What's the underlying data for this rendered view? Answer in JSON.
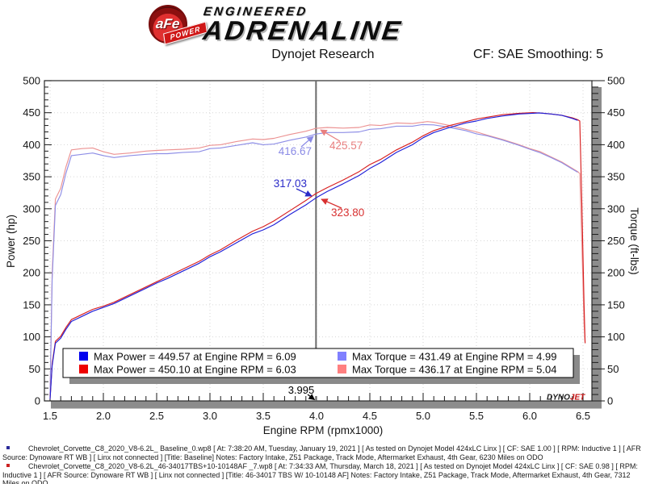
{
  "header": {
    "brand": {
      "afe": "aFe",
      "power": "POWER",
      "engineered": "ENGINEERED",
      "adrenaline": "ADRENALINE"
    },
    "title": "Dynojet Research",
    "cf": "CF: SAE Smoothing: 5"
  },
  "chart_data": {
    "type": "line",
    "title": "Dynojet Research",
    "x_axis": {
      "label": "Engine RPM (rpmx1000)",
      "min": 1.5,
      "max": 6.5,
      "major": 0.5,
      "minor": 0.1
    },
    "y_left": {
      "label": "Power (hp)",
      "min": 0,
      "max": 500,
      "major": 50,
      "minor": 10
    },
    "y_right": {
      "label": "Torque (ft-lbs)",
      "min": 0,
      "max": 500,
      "major": 50,
      "minor": 10
    },
    "grid": true,
    "cursor": {
      "rpm": 3.995,
      "label": "3.995"
    },
    "series": [
      {
        "name": "torque_new",
        "color": "#ec9292",
        "points": [
          [
            1.5,
            10
          ],
          [
            1.52,
            200
          ],
          [
            1.55,
            315
          ],
          [
            1.6,
            332
          ],
          [
            1.65,
            366
          ],
          [
            1.7,
            392
          ],
          [
            1.8,
            394
          ],
          [
            1.9,
            395
          ],
          [
            2.0,
            389
          ],
          [
            2.1,
            385
          ],
          [
            2.25,
            387
          ],
          [
            2.4,
            390
          ],
          [
            2.5,
            391
          ],
          [
            2.6,
            392
          ],
          [
            2.75,
            393
          ],
          [
            2.9,
            395
          ],
          [
            3.0,
            399
          ],
          [
            3.1,
            400
          ],
          [
            3.25,
            405
          ],
          [
            3.4,
            409
          ],
          [
            3.5,
            408
          ],
          [
            3.6,
            410
          ],
          [
            3.75,
            416
          ],
          [
            3.9,
            421
          ],
          [
            3.995,
            425.57
          ],
          [
            4.1,
            427
          ],
          [
            4.25,
            426
          ],
          [
            4.4,
            427
          ],
          [
            4.5,
            431
          ],
          [
            4.6,
            430
          ],
          [
            4.75,
            434
          ],
          [
            4.9,
            433
          ],
          [
            5.04,
            436.17
          ],
          [
            5.1,
            435
          ],
          [
            5.25,
            430
          ],
          [
            5.4,
            424
          ],
          [
            5.5,
            420
          ],
          [
            5.6,
            415
          ],
          [
            5.75,
            408
          ],
          [
            5.9,
            400
          ],
          [
            6.0,
            394
          ],
          [
            6.1,
            389
          ],
          [
            6.2,
            381
          ],
          [
            6.3,
            373
          ],
          [
            6.4,
            363
          ],
          [
            6.45,
            358
          ],
          [
            6.47,
            355
          ],
          [
            6.49,
            240
          ],
          [
            6.51,
            120
          ],
          [
            6.52,
            90
          ]
        ]
      },
      {
        "name": "torque_baseline",
        "color": "#8e8ee6",
        "points": [
          [
            1.5,
            10
          ],
          [
            1.52,
            190
          ],
          [
            1.55,
            305
          ],
          [
            1.6,
            322
          ],
          [
            1.65,
            356
          ],
          [
            1.7,
            383
          ],
          [
            1.8,
            385
          ],
          [
            1.9,
            387
          ],
          [
            2.0,
            383
          ],
          [
            2.1,
            380
          ],
          [
            2.25,
            383
          ],
          [
            2.4,
            385
          ],
          [
            2.5,
            386
          ],
          [
            2.6,
            386
          ],
          [
            2.75,
            388
          ],
          [
            2.9,
            389
          ],
          [
            3.0,
            394
          ],
          [
            3.1,
            395
          ],
          [
            3.25,
            399
          ],
          [
            3.4,
            403
          ],
          [
            3.5,
            400
          ],
          [
            3.6,
            401
          ],
          [
            3.75,
            407
          ],
          [
            3.9,
            412
          ],
          [
            3.995,
            416.67
          ],
          [
            4.1,
            419
          ],
          [
            4.25,
            419
          ],
          [
            4.4,
            420
          ],
          [
            4.5,
            424
          ],
          [
            4.6,
            425
          ],
          [
            4.75,
            429
          ],
          [
            4.9,
            429
          ],
          [
            4.99,
            431.49
          ],
          [
            5.1,
            431
          ],
          [
            5.25,
            427
          ],
          [
            5.4,
            422
          ],
          [
            5.5,
            417
          ],
          [
            5.6,
            414
          ],
          [
            5.75,
            407
          ],
          [
            5.9,
            399
          ],
          [
            6.0,
            393
          ],
          [
            6.09,
            388
          ],
          [
            6.2,
            380
          ],
          [
            6.3,
            372
          ],
          [
            6.4,
            362
          ],
          [
            6.45,
            357
          ]
        ]
      },
      {
        "name": "power_new",
        "color": "#d82020",
        "points": [
          [
            1.5,
            3
          ],
          [
            1.52,
            58
          ],
          [
            1.55,
            93
          ],
          [
            1.6,
            101
          ],
          [
            1.65,
            115
          ],
          [
            1.7,
            127
          ],
          [
            1.8,
            135
          ],
          [
            1.9,
            143
          ],
          [
            2.0,
            148
          ],
          [
            2.1,
            154
          ],
          [
            2.25,
            166
          ],
          [
            2.4,
            178
          ],
          [
            2.5,
            186
          ],
          [
            2.6,
            194
          ],
          [
            2.75,
            206
          ],
          [
            2.9,
            218
          ],
          [
            3.0,
            228
          ],
          [
            3.1,
            236
          ],
          [
            3.25,
            251
          ],
          [
            3.4,
            265
          ],
          [
            3.5,
            272
          ],
          [
            3.6,
            281
          ],
          [
            3.75,
            297
          ],
          [
            3.9,
            313
          ],
          [
            3.995,
            323.8
          ],
          [
            4.1,
            333
          ],
          [
            4.25,
            345
          ],
          [
            4.4,
            358
          ],
          [
            4.5,
            369
          ],
          [
            4.6,
            377
          ],
          [
            4.75,
            392
          ],
          [
            4.9,
            404
          ],
          [
            5.0,
            414
          ],
          [
            5.1,
            422
          ],
          [
            5.25,
            430
          ],
          [
            5.4,
            436
          ],
          [
            5.5,
            440
          ],
          [
            5.6,
            443
          ],
          [
            5.75,
            447
          ],
          [
            5.9,
            449
          ],
          [
            6.03,
            450.1
          ],
          [
            6.1,
            449.5
          ],
          [
            6.2,
            448
          ],
          [
            6.3,
            446
          ],
          [
            6.4,
            442
          ],
          [
            6.45,
            439
          ],
          [
            6.47,
            437
          ],
          [
            6.49,
            300
          ],
          [
            6.51,
            150
          ],
          [
            6.52,
            90
          ]
        ]
      },
      {
        "name": "power_baseline",
        "color": "#2020d8",
        "points": [
          [
            1.5,
            3
          ],
          [
            1.52,
            55
          ],
          [
            1.55,
            90
          ],
          [
            1.6,
            98
          ],
          [
            1.65,
            112
          ],
          [
            1.7,
            124
          ],
          [
            1.8,
            132
          ],
          [
            1.9,
            140
          ],
          [
            2.0,
            146
          ],
          [
            2.1,
            152
          ],
          [
            2.25,
            164
          ],
          [
            2.4,
            176
          ],
          [
            2.5,
            184
          ],
          [
            2.6,
            191
          ],
          [
            2.75,
            203
          ],
          [
            2.9,
            215
          ],
          [
            3.0,
            225
          ],
          [
            3.1,
            233
          ],
          [
            3.25,
            247
          ],
          [
            3.4,
            261
          ],
          [
            3.5,
            267
          ],
          [
            3.6,
            275
          ],
          [
            3.75,
            291
          ],
          [
            3.9,
            306
          ],
          [
            3.995,
            317.03
          ],
          [
            4.1,
            327
          ],
          [
            4.25,
            339
          ],
          [
            4.4,
            352
          ],
          [
            4.5,
            363
          ],
          [
            4.6,
            372
          ],
          [
            4.75,
            388
          ],
          [
            4.9,
            400
          ],
          [
            5.0,
            411
          ],
          [
            5.1,
            419
          ],
          [
            5.25,
            427
          ],
          [
            5.4,
            434
          ],
          [
            5.5,
            437
          ],
          [
            5.6,
            441
          ],
          [
            5.75,
            445
          ],
          [
            5.9,
            448
          ],
          [
            6.09,
            449.57
          ],
          [
            6.2,
            448
          ],
          [
            6.3,
            446
          ],
          [
            6.4,
            441
          ],
          [
            6.45,
            438
          ]
        ]
      }
    ],
    "annotations": [
      {
        "text": "416.67",
        "color": "#8a8ae6",
        "rpm": 3.995,
        "value": 416.67
      },
      {
        "text": "425.57",
        "color": "#e87f7f",
        "rpm": 3.995,
        "value": 425.57
      },
      {
        "text": "317.03",
        "color": "#2a2ac8",
        "rpm": 3.995,
        "value": 317.03
      },
      {
        "text": "323.80",
        "color": "#d83030",
        "rpm": 3.995,
        "value": 323.8
      }
    ],
    "legend": [
      {
        "swatch": "#0000ee",
        "text": "Max Power = 449.57 at Engine RPM = 6.09"
      },
      {
        "swatch": "#ee0000",
        "text": "Max Power = 450.10 at Engine RPM = 6.03"
      },
      {
        "swatch": "#8080ff",
        "text": "Max Torque = 431.49 at Engine RPM = 4.99"
      },
      {
        "swatch": "#ff8080",
        "text": "Max Torque = 436.17 at Engine RPM = 5.04"
      }
    ],
    "watermark": {
      "dyno": "DYNO",
      "jet": "JET"
    }
  },
  "footer": {
    "files": [
      {
        "bullet": "#2a2a99",
        "text": "Chevrolet_Corvette_C8_2020_V8-6.2L_ Baseline_0.wp8 [ At: 7:38:20 AM, Tuesday, January 19, 2021 ] [ As tested on Dynojet Model 424xLC Linx ] [ CF: SAE 1.00 ] [ RPM: Inductive 1 ] [ AFR Source: Dynoware RT WB ] [ Linx not connected ] [Title: Baseline]  Notes: Factory Intake, Z51 Package, Track Mode, Aftermarket Exhaust, 4th Gear, 6230 Miles on ODO"
      },
      {
        "bullet": "#cc2222",
        "text": "Chevrolet_Corvette_C8_2020_V8-6.2L_46-34017TBS+10-10148AF _7.wp8 [ At: 7:34:33 AM, Thursday, March 18, 2021 ] [ As tested on Dynojet Model 424xLC Linx ] [ CF: SAE 0.98 ] [ RPM: Inductive 1 ] [ AFR Source: Dynoware RT WB ] [ Linx not connected ] [Title: 46-34017 TBS W/ 10-10148 AF]  Notes: Factory Intake, Z51 Package, Track Mode, Aftermarket Exhaust, 4th Gear, 7312 Miles on ODO"
      }
    ]
  }
}
